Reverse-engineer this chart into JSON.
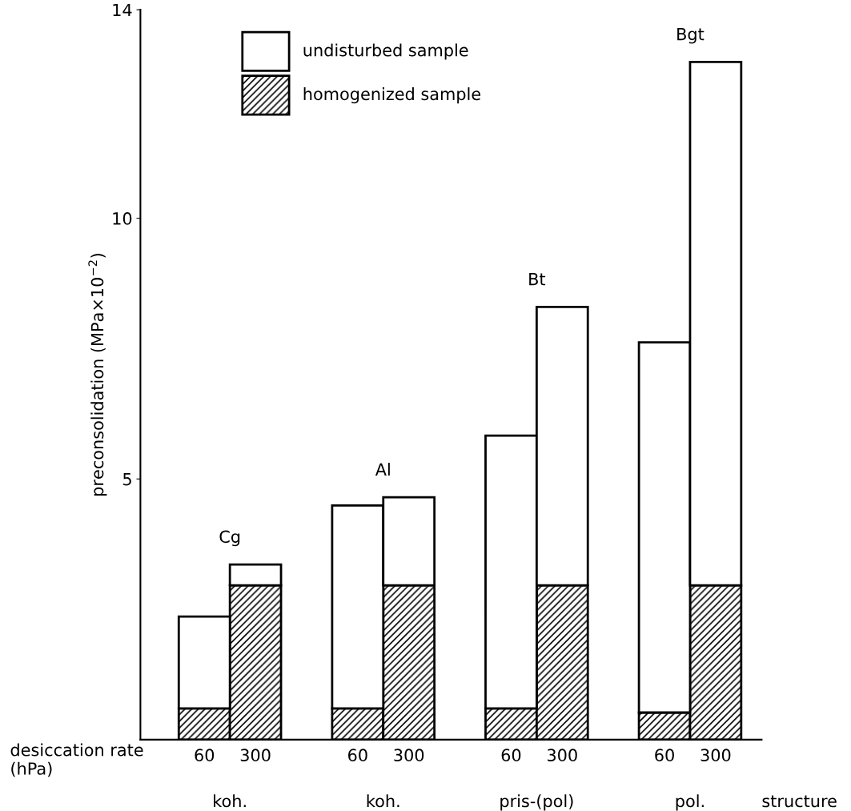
{
  "chart_data": {
    "type": "bar",
    "stacked": true,
    "ylabel": "preconsolidation (MPa×10$^{−2}$)",
    "xlabel": "desiccation rate\n(hPa)",
    "categories": [
      "60",
      "300",
      null,
      "60",
      "300",
      null,
      "60",
      "300",
      null,
      "60",
      "300"
    ],
    "series": [
      {
        "name": "homogenized sample",
        "color": "#000000",
        "values": [
          0.6,
          2.96,
          null,
          0.6,
          2.96,
          null,
          0.6,
          2.96,
          null,
          0.52,
          2.96
        ]
      },
      {
        "name": "undisturbed sample",
        "color": "#ffffff",
        "values": [
          1.76,
          0.4,
          null,
          3.89,
          1.69,
          null,
          5.23,
          5.34,
          null,
          7.1,
          10.04
        ]
      }
    ],
    "ylim": [
      0,
      14
    ],
    "yticks": [
      5,
      10,
      14
    ],
    "grid": false,
    "legend": "top left",
    "annotations": [
      "Cg",
      "Al",
      "Bt",
      "Bgt",
      "koh.",
      "koh.",
      "pris-(pol)",
      "pol.",
      "structure"
    ]
  }
}
